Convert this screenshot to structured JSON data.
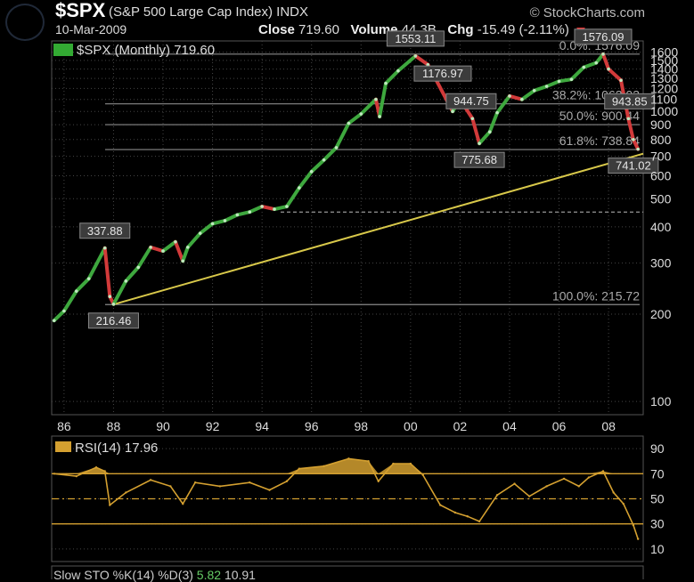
{
  "header": {
    "symbol": "$SPX",
    "name": "(S&P 500 Large Cap Index) INDX",
    "date": "10-Mar-2009",
    "source": "© StockCharts.com",
    "close_label": "Close",
    "close_value": "719.60",
    "volume_label": "Volume",
    "volume_value": "44.3B",
    "chg_label": "Chg",
    "chg_value": "-15.49 (-2.11%)"
  },
  "price_panel": {
    "legend": "$SPX (Monthly) 719.60"
  },
  "rsi_panel": {
    "legend": "RSI(14) 17.96"
  },
  "sto_panel": {
    "legend": "Slow STO %K(14) %D(3)",
    "k_value": "5.82",
    "d_value": "10.91"
  },
  "colors": {
    "up": "#3ea83e",
    "down": "#d23a3a",
    "trendline": "#d8c84a",
    "rsi": "#d4a030",
    "grid": "#444444",
    "fib": "#8a8a8a"
  },
  "chart_data": [
    {
      "type": "line",
      "title": "$SPX (Monthly) 719.60",
      "scale": "log",
      "ylim": [
        90,
        1750
      ],
      "yticks": [
        100,
        200,
        300,
        400,
        500,
        600,
        700,
        800,
        900,
        1000,
        1100,
        1200,
        1300,
        1400,
        1500,
        1600
      ],
      "xlim": [
        1985.5,
        2009.4
      ],
      "xtick_labels": [
        "86",
        "88",
        "90",
        "92",
        "94",
        "96",
        "98",
        "00",
        "02",
        "04",
        "06",
        "08"
      ],
      "grid": true,
      "series": [
        {
          "x": [
            1985.6,
            1986.0,
            1986.5,
            1987.0,
            1987.65,
            1987.85,
            1988.0,
            1988.5,
            1989.0,
            1989.5,
            1990.0,
            1990.5,
            1990.8,
            1991.0,
            1991.5,
            1992.0,
            1992.5,
            1993.0,
            1993.5,
            1994.0,
            1994.5,
            1995.0,
            1995.5,
            1996.0,
            1996.5,
            1997.0,
            1997.5,
            1998.0,
            1998.6,
            1998.75,
            1999.0,
            1999.5,
            2000.2,
            2000.7,
            2001.0,
            2001.7,
            2002.0,
            2002.5,
            2002.78,
            2003.2,
            2003.5,
            2004.0,
            2004.5,
            2005.0,
            2005.5,
            2006.0,
            2006.5,
            2007.0,
            2007.5,
            2007.78,
            2008.0,
            2008.5,
            2008.8,
            2009.0,
            2009.19
          ],
          "values": [
            190,
            205,
            240,
            265,
            337.88,
            230,
            216.46,
            260,
            290,
            340,
            330,
            355,
            305,
            340,
            380,
            410,
            420,
            440,
            450,
            470,
            460,
            470,
            545,
            620,
            680,
            750,
            910,
            980,
            1100,
            960,
            1250,
            1380,
            1553.11,
            1450,
            1300,
            1000,
            1100,
            944.75,
            775.68,
            850,
            990,
            1130,
            1100,
            1180,
            1220,
            1270,
            1290,
            1420,
            1470,
            1576.09,
            1400,
            1280,
            943.85,
            800,
            741.02
          ]
        }
      ],
      "annotations": [
        {
          "x": 1987.65,
          "y": 337.88,
          "text": "337.88"
        },
        {
          "x": 1988.0,
          "y": 216.46,
          "text": "216.46"
        },
        {
          "x": 2000.2,
          "y": 1553.11,
          "text": "1553.11"
        },
        {
          "x": 2001.3,
          "y": 1176.97,
          "text": "1176.97"
        },
        {
          "x": 2002.45,
          "y": 944.75,
          "text": "944.75"
        },
        {
          "x": 2002.78,
          "y": 775.68,
          "text": "775.68"
        },
        {
          "x": 2007.78,
          "y": 1576.09,
          "text": "1576.09"
        },
        {
          "x": 2008.85,
          "y": 943.85,
          "text": "943.85"
        },
        {
          "x": 2009.0,
          "y": 741.02,
          "text": "741.02"
        }
      ],
      "fib_levels": [
        {
          "y": 1576.09,
          "text": "0.0%: 1576.09"
        },
        {
          "y": 1062.03,
          "text": "38.2%: 1062.03"
        },
        {
          "y": 900.44,
          "text": "50.0%: 900.44"
        },
        {
          "y": 738.84,
          "text": "61.8%: 738.84"
        },
        {
          "y": 215.72,
          "text": "100.0%: 215.72"
        }
      ],
      "support_level": 450,
      "trendline": [
        {
          "x": 1988.0,
          "y": 216
        },
        {
          "x": 2009.4,
          "y": 715
        }
      ]
    },
    {
      "type": "line",
      "title": "RSI(14) 17.96",
      "ylim": [
        0,
        100
      ],
      "yticks": [
        10,
        30,
        50,
        70,
        90
      ],
      "reference_lines": [
        30,
        50,
        70
      ],
      "series": [
        {
          "name": "RSI(14)",
          "x": [
            1985.6,
            1986.5,
            1987.3,
            1987.65,
            1987.85,
            1988.5,
            1989.5,
            1990.3,
            1990.8,
            1991.3,
            1992.3,
            1993.5,
            1994.3,
            1995.0,
            1995.5,
            1996.5,
            1997.5,
            1998.3,
            1998.7,
            1999.3,
            2000.0,
            2000.5,
            2001.2,
            2001.8,
            2002.3,
            2002.78,
            2003.5,
            2004.2,
            2004.8,
            2005.5,
            2006.2,
            2006.8,
            2007.2,
            2007.78,
            2008.2,
            2008.6,
            2009.0,
            2009.19
          ],
          "values": [
            70,
            68,
            75,
            72,
            45,
            55,
            65,
            60,
            46,
            63,
            60,
            63,
            57,
            64,
            74,
            76,
            82,
            80,
            64,
            78,
            78,
            69,
            45,
            39,
            36,
            32,
            53,
            62,
            52,
            60,
            66,
            60,
            67,
            72,
            55,
            46,
            29,
            17.96
          ]
        }
      ]
    }
  ]
}
